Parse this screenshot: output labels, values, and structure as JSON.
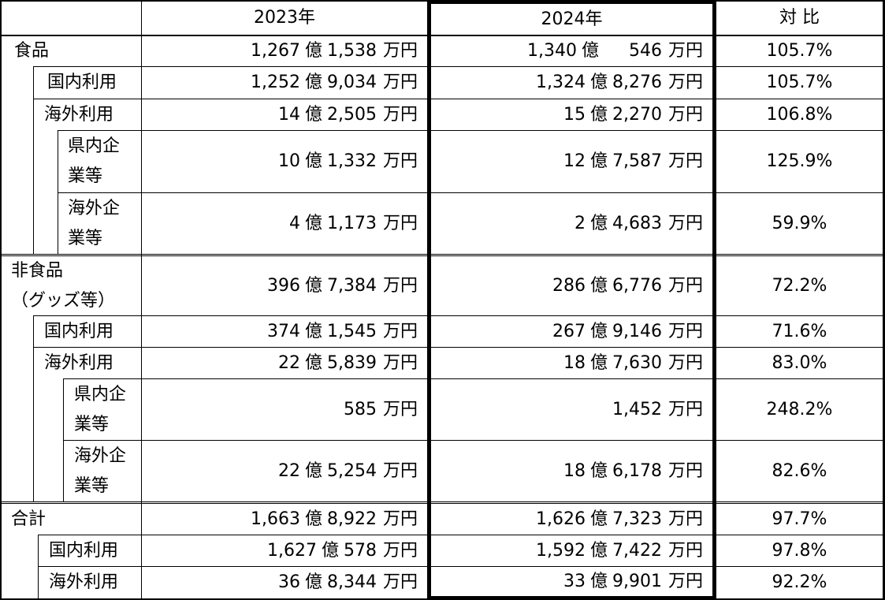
{
  "headers": [
    "2023年",
    "2024年",
    "対 比"
  ],
  "rows": [
    {
      "label": [
        "食品"
      ],
      "y2023": {
        "oku": "1,267",
        "man": "1,538"
      },
      "y2024": {
        "oku": "1,340",
        "man": "546"
      },
      "ratio": "105.7%"
    },
    {
      "label": [
        "国内利用"
      ],
      "y2023": {
        "oku": "1,252",
        "man": "9,034"
      },
      "y2024": {
        "oku": "1,324",
        "man": "8,276"
      },
      "ratio": "105.7%"
    },
    {
      "label": [
        "海外利用"
      ],
      "y2023": {
        "oku": "14",
        "man": "2,505"
      },
      "y2024": {
        "oku": "15",
        "man": "2,270"
      },
      "ratio": "106.8%"
    },
    {
      "label": [
        "県内企",
        "業等"
      ],
      "y2023": {
        "oku": "10",
        "man": "1,332"
      },
      "y2024": {
        "oku": "12",
        "man": "7,587"
      },
      "ratio": "125.9%"
    },
    {
      "label": [
        "海外企",
        "業等"
      ],
      "y2023": {
        "oku": "4",
        "man": "1,173"
      },
      "y2024": {
        "oku": "2",
        "man": "4,683"
      },
      "ratio": "59.9%"
    },
    {
      "label": [
        "非食品",
        "（グッズ等）"
      ],
      "y2023": {
        "oku": "396",
        "man": "7,384"
      },
      "y2024": {
        "oku": "286",
        "man": "6,776"
      },
      "ratio": "72.2%"
    },
    {
      "label": [
        "国内利用"
      ],
      "y2023": {
        "oku": "374",
        "man": "1,545"
      },
      "y2024": {
        "oku": "267",
        "man": "9,146"
      },
      "ratio": "71.6%"
    },
    {
      "label": [
        "海外利用"
      ],
      "y2023": {
        "oku": "22",
        "man": "5,839"
      },
      "y2024": {
        "oku": "18",
        "man": "7,630"
      },
      "ratio": "83.0%"
    },
    {
      "label": [
        "県内企",
        "業等"
      ],
      "y2023": {
        "oku": "",
        "man": "585"
      },
      "y2024": {
        "oku": "",
        "man": "1,452"
      },
      "ratio": "248.2%"
    },
    {
      "label": [
        "海外企",
        "業等"
      ],
      "y2023": {
        "oku": "22",
        "man": "5,254"
      },
      "y2024": {
        "oku": "18",
        "man": "6,178"
      },
      "ratio": "82.6%"
    },
    {
      "label": [
        "合計"
      ],
      "y2023": {
        "oku": "1,663",
        "man": "8,922"
      },
      "y2024": {
        "oku": "1,626",
        "man": "7,323"
      },
      "ratio": "97.7%"
    },
    {
      "label": [
        "国内利用"
      ],
      "y2023": {
        "oku": "1,627",
        "man": "578"
      },
      "y2024": {
        "oku": "1,592",
        "man": "7,422"
      },
      "ratio": "97.8%"
    },
    {
      "label": [
        "海外利用"
      ],
      "y2023": {
        "oku": "36",
        "man": "8,344"
      },
      "y2024": {
        "oku": "33",
        "man": "9,901"
      },
      "ratio": "92.2%"
    }
  ],
  "units": {
    "oku": "億",
    "man": "万円"
  }
}
